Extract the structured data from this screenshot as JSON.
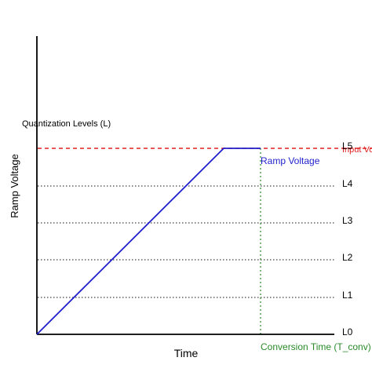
{
  "diagram": {
    "levels_label": "Quantization Levels (L)",
    "levels": [
      "L0",
      "L1",
      "L2",
      "L3",
      "L4",
      "L5"
    ],
    "ylabel": "Ramp Voltage",
    "xlabel": "Time",
    "ramp_label": "Ramp Voltage",
    "input_label": "Input Vo",
    "conversion_label": "Conversion Time (T_conv)",
    "colors": {
      "axis": "#000000",
      "ramp": "#1f1fcc",
      "input": "#e02020",
      "conversion": "#2a8a2a",
      "level_line": "#444444"
    }
  }
}
